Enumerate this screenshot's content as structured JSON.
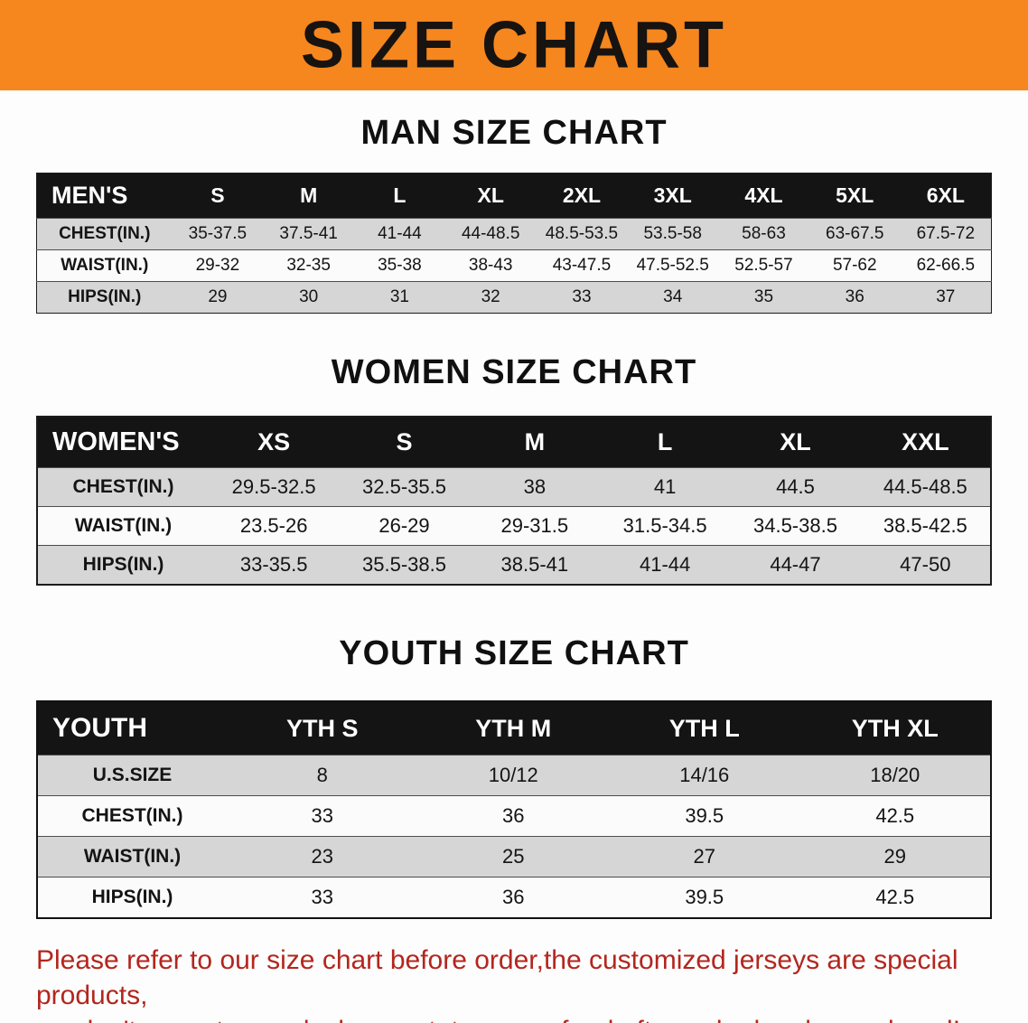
{
  "banner": {
    "title": "SIZE CHART"
  },
  "colors": {
    "banner_bg": "#f6861e",
    "table_header_bg": "#141414",
    "stripe_row_bg": "#d6d6d6",
    "footer_text": "#b3261e"
  },
  "sections": [
    {
      "heading": "MAN SIZE CHART",
      "table": {
        "header": [
          "MEN'S",
          "S",
          "M",
          "L",
          "XL",
          "2XL",
          "3XL",
          "4XL",
          "5XL",
          "6XL"
        ],
        "rows": [
          [
            "CHEST(IN.)",
            "35-37.5",
            "37.5-41",
            "41-44",
            "44-48.5",
            "48.5-53.5",
            "53.5-58",
            "58-63",
            "63-67.5",
            "67.5-72"
          ],
          [
            "WAIST(IN.)",
            "29-32",
            "32-35",
            "35-38",
            "38-43",
            "43-47.5",
            "47.5-52.5",
            "52.5-57",
            "57-62",
            "62-66.5"
          ],
          [
            "HIPS(IN.)",
            "29",
            "30",
            "31",
            "32",
            "33",
            "34",
            "35",
            "36",
            "37"
          ]
        ]
      }
    },
    {
      "heading": "WOMEN SIZE CHART",
      "table": {
        "header": [
          "WOMEN'S",
          "XS",
          "S",
          "M",
          "L",
          "XL",
          "XXL"
        ],
        "rows": [
          [
            "CHEST(IN.)",
            "29.5-32.5",
            "32.5-35.5",
            "38",
            "41",
            "44.5",
            "44.5-48.5"
          ],
          [
            "WAIST(IN.)",
            "23.5-26",
            "26-29",
            "29-31.5",
            "31.5-34.5",
            "34.5-38.5",
            "38.5-42.5"
          ],
          [
            "HIPS(IN.)",
            "33-35.5",
            "35.5-38.5",
            "38.5-41",
            "41-44",
            "44-47",
            "47-50"
          ]
        ]
      }
    },
    {
      "heading": "YOUTH SIZE CHART",
      "table": {
        "header": [
          "YOUTH",
          "YTH S",
          "YTH M",
          "YTH L",
          "YTH XL"
        ],
        "rows": [
          [
            "U.S.SIZE",
            "8",
            "10/12",
            "14/16",
            "18/20"
          ],
          [
            "CHEST(IN.)",
            "33",
            "36",
            "39.5",
            "42.5"
          ],
          [
            "WAIST(IN.)",
            "23",
            "25",
            "27",
            "29"
          ],
          [
            "HIPS(IN.)",
            "33",
            "36",
            "39.5",
            "42.5"
          ]
        ]
      }
    }
  ],
  "footer": {
    "line1": "Please refer to our size chart before order,the customized jerseys are special products,",
    "line2": "we don't accept cancel, change, teturn or refund after order has been placed!"
  }
}
